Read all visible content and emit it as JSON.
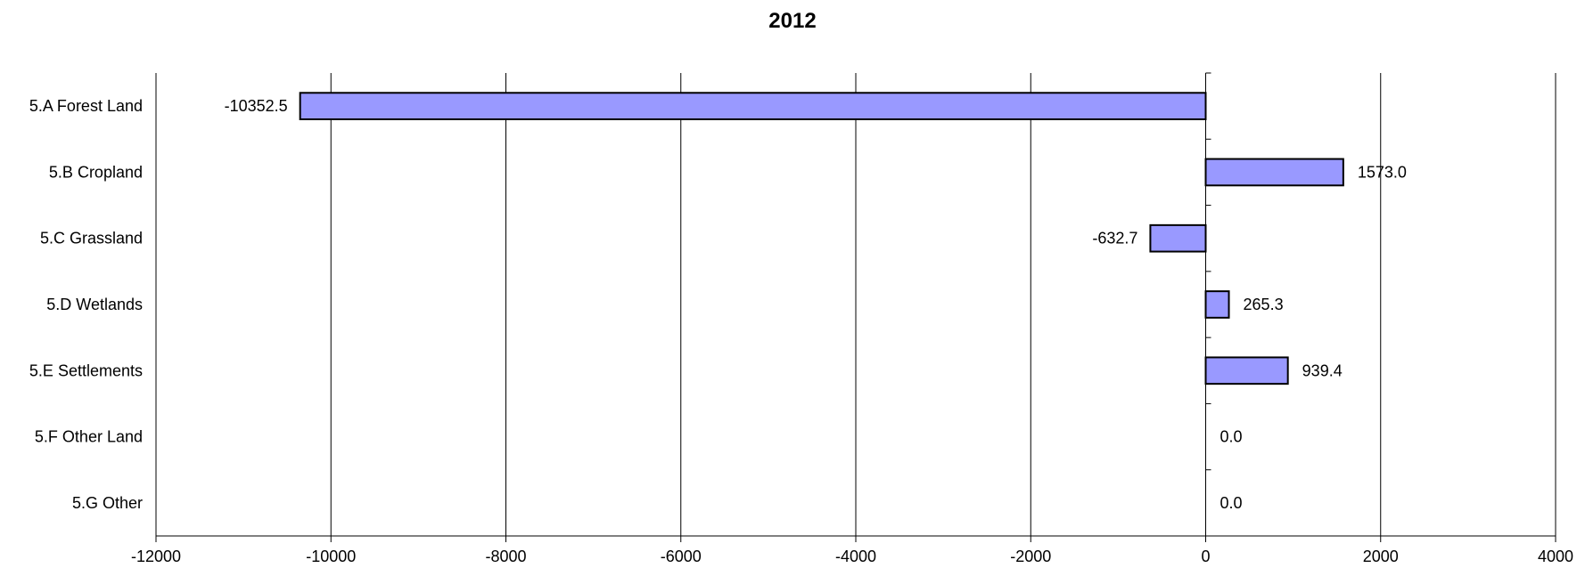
{
  "chart_data": {
    "type": "bar",
    "orientation": "horizontal",
    "title": "2012",
    "categories": [
      "5.A Forest Land",
      "5.B Cropland",
      "5.C Grassland",
      "5.D Wetlands",
      "5.E Settlements",
      "5.F Other Land",
      "5.G Other"
    ],
    "values": [
      -10352.5,
      1573.0,
      -632.7,
      265.3,
      939.4,
      0.0,
      0.0
    ],
    "data_labels": [
      "-10352.5",
      "1573.0",
      "-632.7",
      "265.3",
      "939.4",
      "0.0",
      "0.0"
    ],
    "xlim": [
      -12000,
      4000
    ],
    "xticks": [
      -12000,
      -10000,
      -8000,
      -6000,
      -4000,
      -2000,
      0,
      2000,
      4000
    ],
    "xtick_labels": [
      "-12000",
      "-10000",
      "-8000",
      "-6000",
      "-4000",
      "-2000",
      "0",
      "2000",
      "4000"
    ],
    "xlabel": "",
    "ylabel": "",
    "grid": "vertical",
    "legend": "none",
    "bar_color": "#9999ff",
    "bar_edge_color": "#000000"
  }
}
